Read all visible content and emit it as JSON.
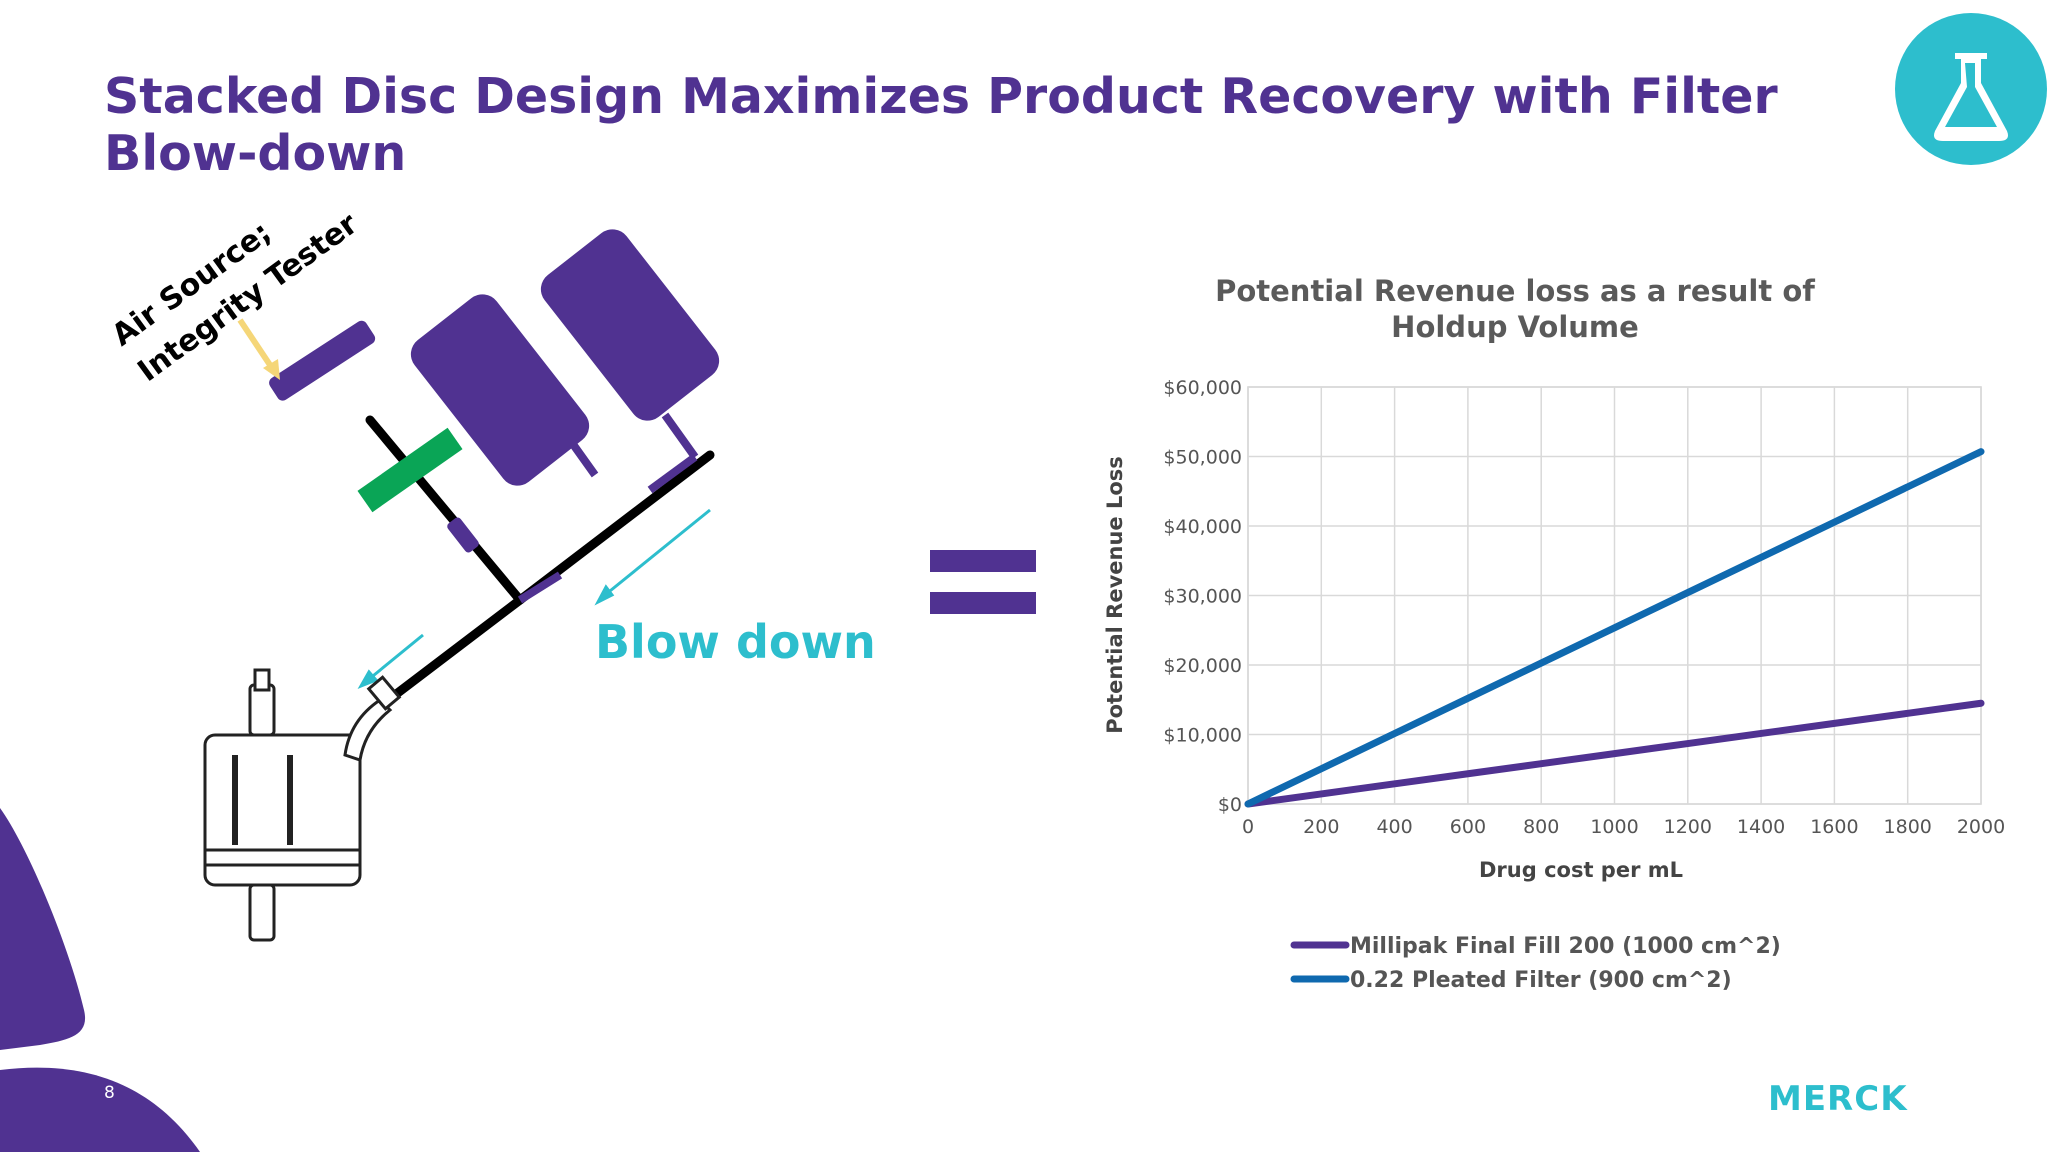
{
  "slide": {
    "title": "Stacked Disc Design Maximizes Product Recovery with Filter Blow-down",
    "page_number": "8",
    "brand_name": "MERCK",
    "logo_icon": "flask-icon",
    "colors": {
      "purple": "#503291",
      "cyan": "#2dbecd",
      "green": "#0aa556",
      "blue": "#0f69af",
      "yellow": "#f5d678"
    }
  },
  "diagram": {
    "air_label_line1": "Air Source;",
    "air_label_line2": "Integrity Tester",
    "blow_down_label": "Blow down"
  },
  "chart_data": {
    "type": "line",
    "title_line1": "Potential Revenue loss as a result of",
    "title_line2": "Holdup Volume",
    "xlabel": "Drug cost per mL",
    "ylabel": "Potential Revenue Loss",
    "x": [
      0,
      200,
      400,
      600,
      800,
      1000,
      1200,
      1400,
      1600,
      1800,
      2000
    ],
    "xlim": [
      0,
      2000
    ],
    "ylim": [
      0,
      60000
    ],
    "x_ticks": [
      "0",
      "200",
      "400",
      "600",
      "800",
      "1000",
      "1200",
      "1400",
      "1600",
      "1800",
      "2000"
    ],
    "y_ticks": [
      0,
      10000,
      20000,
      30000,
      40000,
      50000,
      60000
    ],
    "y_tick_labels": [
      "$0",
      "$10,000",
      "$20,000",
      "$30,000",
      "$40,000",
      "$50,000",
      "$60,000"
    ],
    "grid": true,
    "legend_position": "bottom",
    "series": [
      {
        "name": "Millipak Final Fill 200 (1000 cm^2)",
        "color": "#503291",
        "values": [
          0,
          1450,
          2900,
          4350,
          5800,
          7250,
          8700,
          10150,
          11600,
          13050,
          14500
        ]
      },
      {
        "name": "0.22 Pleated Filter (900 cm^2)",
        "color": "#0f69af",
        "values": [
          0,
          5070,
          10140,
          15210,
          20280,
          25350,
          30420,
          35490,
          40560,
          45630,
          50700
        ]
      }
    ]
  }
}
